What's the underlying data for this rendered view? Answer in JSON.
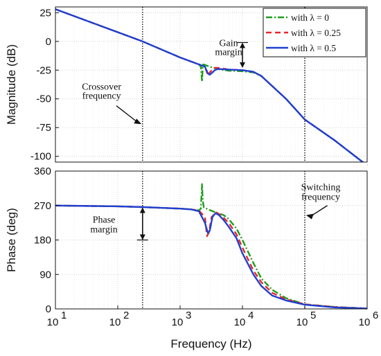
{
  "chart_data": [
    {
      "type": "line",
      "ylabel": "Magnitude (dB)",
      "xscale": "log",
      "xlim": [
        10,
        1000000
      ],
      "ylim": [
        -105,
        30
      ],
      "yticks": [
        25,
        0,
        -25,
        -50,
        -75,
        -100
      ],
      "ytick_labels": [
        "25",
        "0",
        "-25",
        "-50",
        "-75",
        "-100"
      ],
      "grid": true,
      "legend": {
        "placement": "top-right",
        "entries": [
          "with λ = 0",
          "with λ = 0.25",
          "with λ = 0.5"
        ]
      },
      "series": [
        {
          "name": "with λ = 0",
          "color": "#1a9e1a",
          "style": "dash-dot",
          "x": [
            10,
            100,
            250,
            1000,
            2000,
            2150,
            2250,
            2300,
            2350,
            2500,
            3000,
            4000,
            6000,
            10000,
            15000,
            20000,
            50000,
            100000,
            300000,
            1000000
          ],
          "y": [
            28,
            8,
            0,
            -14,
            -20,
            -22,
            -35,
            -22,
            -20,
            -20.5,
            -22,
            -24,
            -25.5,
            -26,
            -27,
            -30,
            -50,
            -68,
            -86,
            -108
          ]
        },
        {
          "name": "with λ = 0.25",
          "color": "#e8262a",
          "style": "dashed",
          "x": [
            10,
            100,
            250,
            1000,
            2000,
            2500,
            2700,
            2800,
            3000,
            3500,
            4000,
            6000,
            10000,
            15000,
            20000,
            50000,
            100000,
            300000,
            1000000
          ],
          "y": [
            28,
            8,
            0,
            -14,
            -20,
            -22,
            -27,
            -30,
            -27,
            -23,
            -23,
            -24.5,
            -25,
            -26.5,
            -30,
            -50,
            -68,
            -86,
            -108
          ]
        },
        {
          "name": "with λ = 0.5",
          "color": "#1f3fd1",
          "style": "solid",
          "x": [
            10,
            100,
            250,
            1000,
            2000,
            2500,
            2800,
            3000,
            3300,
            3600,
            4000,
            6000,
            10000,
            15000,
            20000,
            50000,
            100000,
            300000,
            1000000
          ],
          "y": [
            28,
            8,
            0,
            -14,
            -20,
            -22,
            -28,
            -29,
            -27,
            -25,
            -24,
            -24.5,
            -25,
            -26.5,
            -30,
            -50,
            -68,
            -86,
            -108
          ]
        }
      ],
      "annotations": [
        {
          "text": "Gain",
          "x": 6000,
          "y": -4
        },
        {
          "text": "margin",
          "x": 6000,
          "y": -12
        },
        {
          "text": "Crossover",
          "x": 55,
          "y": -42
        },
        {
          "text": "frequency",
          "x": 55,
          "y": -50
        }
      ],
      "reference_lines": [
        {
          "label": "crossover",
          "x": 250
        },
        {
          "label": "switching",
          "x": 100000
        }
      ]
    },
    {
      "type": "line",
      "xlabel": "Frequency  (Hz)",
      "ylabel": "Phase (deg)",
      "xscale": "log",
      "xlim": [
        10,
        1000000
      ],
      "ylim": [
        0,
        360
      ],
      "yticks": [
        0,
        90,
        180,
        270,
        360
      ],
      "ytick_labels": [
        "0",
        "90",
        "180",
        "270",
        "360"
      ],
      "xticks": [
        10,
        100,
        1000,
        10000,
        100000,
        1000000
      ],
      "xtick_labels": [
        [
          "10",
          "1"
        ],
        [
          "10",
          "2"
        ],
        [
          "10",
          "3"
        ],
        [
          "10",
          "4"
        ],
        [
          "10",
          "5"
        ],
        [
          "10",
          "6"
        ]
      ],
      "grid": true,
      "series": [
        {
          "name": "with λ = 0",
          "color": "#1a9e1a",
          "style": "dash-dot",
          "x": [
            10,
            100,
            250,
            500,
            1000,
            1500,
            2000,
            2150,
            2250,
            2300,
            2400,
            3000,
            4000,
            5000,
            6000,
            8000,
            10000,
            15000,
            20000,
            30000,
            50000,
            100000,
            300000,
            1000000
          ],
          "y": [
            270,
            268,
            266,
            264,
            262,
            260,
            257,
            262,
            326,
            285,
            265,
            258,
            250,
            245,
            235,
            210,
            180,
            120,
            80,
            50,
            28,
            12,
            5,
            1
          ]
        },
        {
          "name": "with λ = 0.25",
          "color": "#e8262a",
          "style": "dashed",
          "x": [
            10,
            100,
            250,
            500,
            1000,
            1500,
            2000,
            2500,
            2700,
            2900,
            3200,
            3800,
            4500,
            6000,
            8000,
            10000,
            15000,
            20000,
            30000,
            50000,
            100000,
            300000,
            1000000
          ],
          "y": [
            270,
            268,
            266,
            264,
            262,
            260,
            257,
            240,
            190,
            200,
            240,
            252,
            245,
            225,
            195,
            160,
            100,
            70,
            42,
            25,
            12,
            5,
            1
          ]
        },
        {
          "name": "with λ = 0.5",
          "color": "#1f3fd1",
          "style": "solid",
          "x": [
            10,
            100,
            250,
            500,
            1000,
            1500,
            2000,
            2500,
            2800,
            3000,
            3300,
            3700,
            4200,
            5000,
            6000,
            8000,
            10000,
            15000,
            20000,
            30000,
            50000,
            100000,
            300000,
            1000000
          ],
          "y": [
            270,
            268,
            266,
            264,
            262,
            260,
            255,
            225,
            198,
            205,
            240,
            250,
            245,
            232,
            215,
            185,
            145,
            90,
            60,
            35,
            22,
            11,
            4,
            1
          ]
        }
      ],
      "annotations": [
        {
          "text": "Switching",
          "x": 180000,
          "y": 310
        },
        {
          "text": "frequency",
          "x": 180000,
          "y": 285
        },
        {
          "text": "Phase",
          "x": 60,
          "y": 225
        },
        {
          "text": "margin",
          "x": 60,
          "y": 200
        }
      ],
      "reference_lines": [
        {
          "label": "crossover",
          "x": 250
        },
        {
          "label": "switching",
          "x": 100000
        }
      ]
    }
  ]
}
